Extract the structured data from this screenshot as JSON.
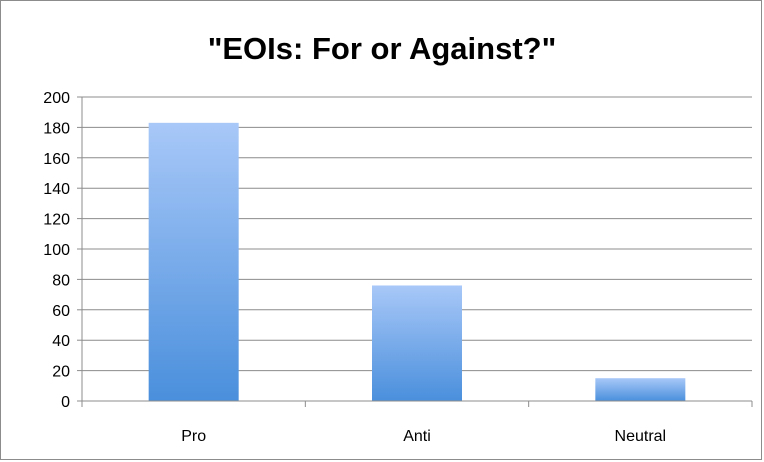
{
  "chart_data": {
    "type": "bar",
    "title": "\"EOIs: For or Against?\"",
    "xlabel": "",
    "ylabel": "",
    "categories": [
      "Pro",
      "Anti",
      "Neutral"
    ],
    "values": [
      183,
      76,
      15
    ],
    "ylim": [
      0,
      200
    ],
    "yticks": [
      0,
      20,
      40,
      60,
      80,
      100,
      120,
      140,
      160,
      180,
      200
    ],
    "grid": true,
    "legend": "none",
    "colors": {
      "bar_top": "#a8c8f8",
      "bar_bottom": "#4a8fdc",
      "grid": "#8c8c8c",
      "axis": "#8c8c8c"
    }
  }
}
